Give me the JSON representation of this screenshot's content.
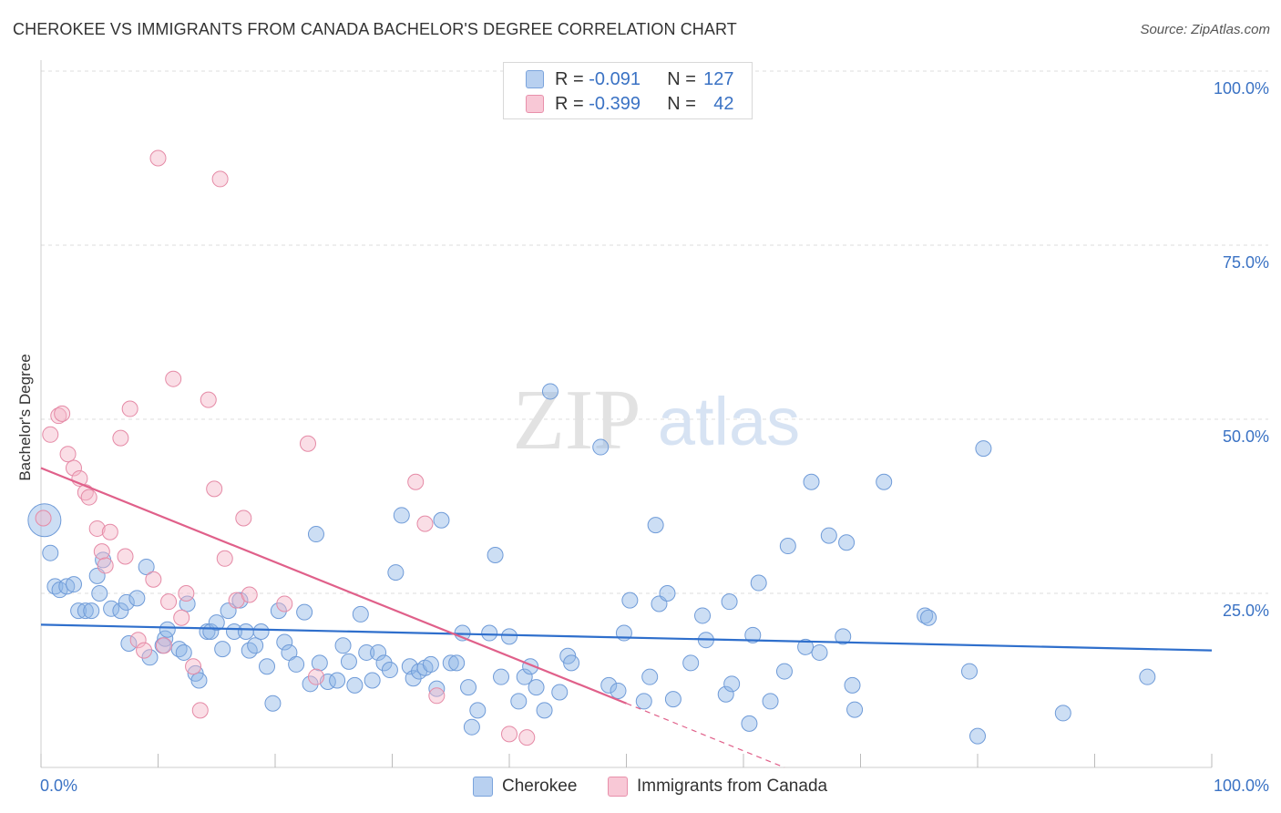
{
  "title": "CHEROKEE VS IMMIGRANTS FROM CANADA BACHELOR'S DEGREE CORRELATION CHART",
  "source": "Source: ZipAtlas.com",
  "watermark": {
    "zip": "ZIP",
    "atlas": "atlas"
  },
  "legend": {
    "r_label": "R = ",
    "n_label": "N = ",
    "rows": [
      {
        "r": "-0.091",
        "n": "127",
        "color": "#b8d0f0",
        "border": "#7aa3dc"
      },
      {
        "r": "-0.399",
        "n": "42",
        "color": "#f8c8d6",
        "border": "#e890ab"
      }
    ]
  },
  "chart_data": {
    "type": "scatter",
    "title": "CHEROKEE VS IMMIGRANTS FROM CANADA BACHELOR'S DEGREE CORRELATION CHART",
    "xlabel": "",
    "ylabel": "Bachelor's Degree",
    "xlim": [
      0,
      100
    ],
    "ylim": [
      0,
      100
    ],
    "x_ticks": [
      "0.0%",
      "100.0%"
    ],
    "y_ticks": [
      {
        "value": 25,
        "label": "25.0%"
      },
      {
        "value": 50,
        "label": "50.0%"
      },
      {
        "value": 75,
        "label": "75.0%"
      },
      {
        "value": 100,
        "label": "100.0%"
      }
    ],
    "grid": true,
    "legend_position": "top-center",
    "series": [
      {
        "name": "Cherokee",
        "color": "#8fb5e6",
        "stroke": "#6f9bd8",
        "trend": {
          "x0": 0,
          "y0": 20.5,
          "x1": 100,
          "y1": 16.8
        },
        "points": [
          [
            0.3,
            35.5
          ],
          [
            0.8,
            30.8
          ],
          [
            1.2,
            26.0
          ],
          [
            1.6,
            25.5
          ],
          [
            2.2,
            26.0
          ],
          [
            2.8,
            26.3
          ],
          [
            3.2,
            22.5
          ],
          [
            3.8,
            22.5
          ],
          [
            4.3,
            22.5
          ],
          [
            5.0,
            25.0
          ],
          [
            4.8,
            27.5
          ],
          [
            5.3,
            29.8
          ],
          [
            6.0,
            22.8
          ],
          [
            6.8,
            22.5
          ],
          [
            7.3,
            23.7
          ],
          [
            8.2,
            24.3
          ],
          [
            7.5,
            17.8
          ],
          [
            9.3,
            15.8
          ],
          [
            9.0,
            28.8
          ],
          [
            10.4,
            17.5
          ],
          [
            10.6,
            18.5
          ],
          [
            10.8,
            19.8
          ],
          [
            11.8,
            17.0
          ],
          [
            12.2,
            16.5
          ],
          [
            12.5,
            23.5
          ],
          [
            13.2,
            13.5
          ],
          [
            13.5,
            12.5
          ],
          [
            14.2,
            19.5
          ],
          [
            14.5,
            19.5
          ],
          [
            15.0,
            20.8
          ],
          [
            15.5,
            17.0
          ],
          [
            16.0,
            22.5
          ],
          [
            16.5,
            19.5
          ],
          [
            17.0,
            24.0
          ],
          [
            17.5,
            19.5
          ],
          [
            17.8,
            16.8
          ],
          [
            18.3,
            17.5
          ],
          [
            18.8,
            19.5
          ],
          [
            19.3,
            14.5
          ],
          [
            19.8,
            9.2
          ],
          [
            20.3,
            22.5
          ],
          [
            20.8,
            18.0
          ],
          [
            21.2,
            16.5
          ],
          [
            21.8,
            14.8
          ],
          [
            22.5,
            22.3
          ],
          [
            23.0,
            12.0
          ],
          [
            23.5,
            33.5
          ],
          [
            23.8,
            15.0
          ],
          [
            24.5,
            12.3
          ],
          [
            25.3,
            12.5
          ],
          [
            25.8,
            17.5
          ],
          [
            26.3,
            15.2
          ],
          [
            26.8,
            11.8
          ],
          [
            27.3,
            22.0
          ],
          [
            27.8,
            16.5
          ],
          [
            28.3,
            12.5
          ],
          [
            28.8,
            16.5
          ],
          [
            29.3,
            15.0
          ],
          [
            29.8,
            14.0
          ],
          [
            30.3,
            28.0
          ],
          [
            30.8,
            36.2
          ],
          [
            31.5,
            14.5
          ],
          [
            31.8,
            12.8
          ],
          [
            32.3,
            13.8
          ],
          [
            32.8,
            14.3
          ],
          [
            33.3,
            14.8
          ],
          [
            33.8,
            11.3
          ],
          [
            34.2,
            35.5
          ],
          [
            35.0,
            15.0
          ],
          [
            35.5,
            15.0
          ],
          [
            36.0,
            19.3
          ],
          [
            36.5,
            11.5
          ],
          [
            36.8,
            5.8
          ],
          [
            37.3,
            8.2
          ],
          [
            38.3,
            19.3
          ],
          [
            38.8,
            30.5
          ],
          [
            39.3,
            13.0
          ],
          [
            40.0,
            18.8
          ],
          [
            40.8,
            9.5
          ],
          [
            41.3,
            13.0
          ],
          [
            41.8,
            14.5
          ],
          [
            42.3,
            11.5
          ],
          [
            43.0,
            8.2
          ],
          [
            43.5,
            54.0
          ],
          [
            44.3,
            10.8
          ],
          [
            45.0,
            16.0
          ],
          [
            45.3,
            15.0
          ],
          [
            47.8,
            46.0
          ],
          [
            48.5,
            11.8
          ],
          [
            49.3,
            11.0
          ],
          [
            49.8,
            19.3
          ],
          [
            50.3,
            24.0
          ],
          [
            51.5,
            9.5
          ],
          [
            52.0,
            13.0
          ],
          [
            52.5,
            34.8
          ],
          [
            52.8,
            23.5
          ],
          [
            53.5,
            25.0
          ],
          [
            54.0,
            9.8
          ],
          [
            55.5,
            15.0
          ],
          [
            56.5,
            21.8
          ],
          [
            56.8,
            18.3
          ],
          [
            58.5,
            10.5
          ],
          [
            58.8,
            23.8
          ],
          [
            59.0,
            12.0
          ],
          [
            60.5,
            6.3
          ],
          [
            60.8,
            19.0
          ],
          [
            61.3,
            26.5
          ],
          [
            62.3,
            9.5
          ],
          [
            63.5,
            13.8
          ],
          [
            63.8,
            31.8
          ],
          [
            65.3,
            17.3
          ],
          [
            65.8,
            41.0
          ],
          [
            66.5,
            16.5
          ],
          [
            67.3,
            33.3
          ],
          [
            68.5,
            18.8
          ],
          [
            68.8,
            32.3
          ],
          [
            69.3,
            11.8
          ],
          [
            69.5,
            8.3
          ],
          [
            72.0,
            41.0
          ],
          [
            75.5,
            21.8
          ],
          [
            75.8,
            21.5
          ],
          [
            79.3,
            13.8
          ],
          [
            80.0,
            4.5
          ],
          [
            80.5,
            45.8
          ],
          [
            87.3,
            7.8
          ],
          [
            94.5,
            13.0
          ]
        ],
        "big": [
          0.3,
          35.5
        ]
      },
      {
        "name": "Immigrants from Canada",
        "color": "#f5b5c8",
        "stroke": "#e58aa6",
        "trend": {
          "x0": 0,
          "y0": 43.0,
          "x1": 50,
          "y1": 9.2
        },
        "trend_dash": {
          "x0": 50,
          "y0": 9.2,
          "x1": 63.5,
          "y1": 0.0
        },
        "points": [
          [
            0.2,
            35.8
          ],
          [
            0.8,
            47.8
          ],
          [
            1.5,
            50.5
          ],
          [
            1.8,
            50.8
          ],
          [
            2.3,
            45.0
          ],
          [
            2.8,
            43.0
          ],
          [
            3.3,
            41.5
          ],
          [
            3.8,
            39.5
          ],
          [
            4.1,
            38.8
          ],
          [
            4.8,
            34.3
          ],
          [
            5.2,
            31.0
          ],
          [
            5.5,
            29.0
          ],
          [
            5.9,
            33.8
          ],
          [
            6.8,
            47.3
          ],
          [
            7.2,
            30.3
          ],
          [
            7.6,
            51.5
          ],
          [
            8.3,
            18.3
          ],
          [
            8.8,
            16.8
          ],
          [
            9.6,
            27.0
          ],
          [
            10.0,
            87.5
          ],
          [
            10.5,
            17.5
          ],
          [
            10.9,
            23.8
          ],
          [
            11.3,
            55.8
          ],
          [
            12.0,
            21.5
          ],
          [
            12.4,
            25.0
          ],
          [
            13.0,
            14.5
          ],
          [
            13.6,
            8.2
          ],
          [
            14.3,
            52.8
          ],
          [
            14.8,
            40.0
          ],
          [
            15.3,
            84.5
          ],
          [
            15.7,
            30.0
          ],
          [
            16.7,
            24.0
          ],
          [
            17.3,
            35.8
          ],
          [
            17.8,
            24.8
          ],
          [
            20.8,
            23.5
          ],
          [
            22.8,
            46.5
          ],
          [
            23.5,
            13.0
          ],
          [
            32.0,
            41.0
          ],
          [
            32.8,
            35.0
          ],
          [
            33.8,
            10.3
          ],
          [
            40.0,
            4.8
          ],
          [
            41.5,
            4.3
          ]
        ]
      }
    ]
  },
  "bottom_legend": [
    {
      "label": "Cherokee",
      "color": "#b8d0f0",
      "border": "#7aa3dc"
    },
    {
      "label": "Immigrants from Canada",
      "color": "#f8c8d6",
      "border": "#e890ab"
    }
  ]
}
